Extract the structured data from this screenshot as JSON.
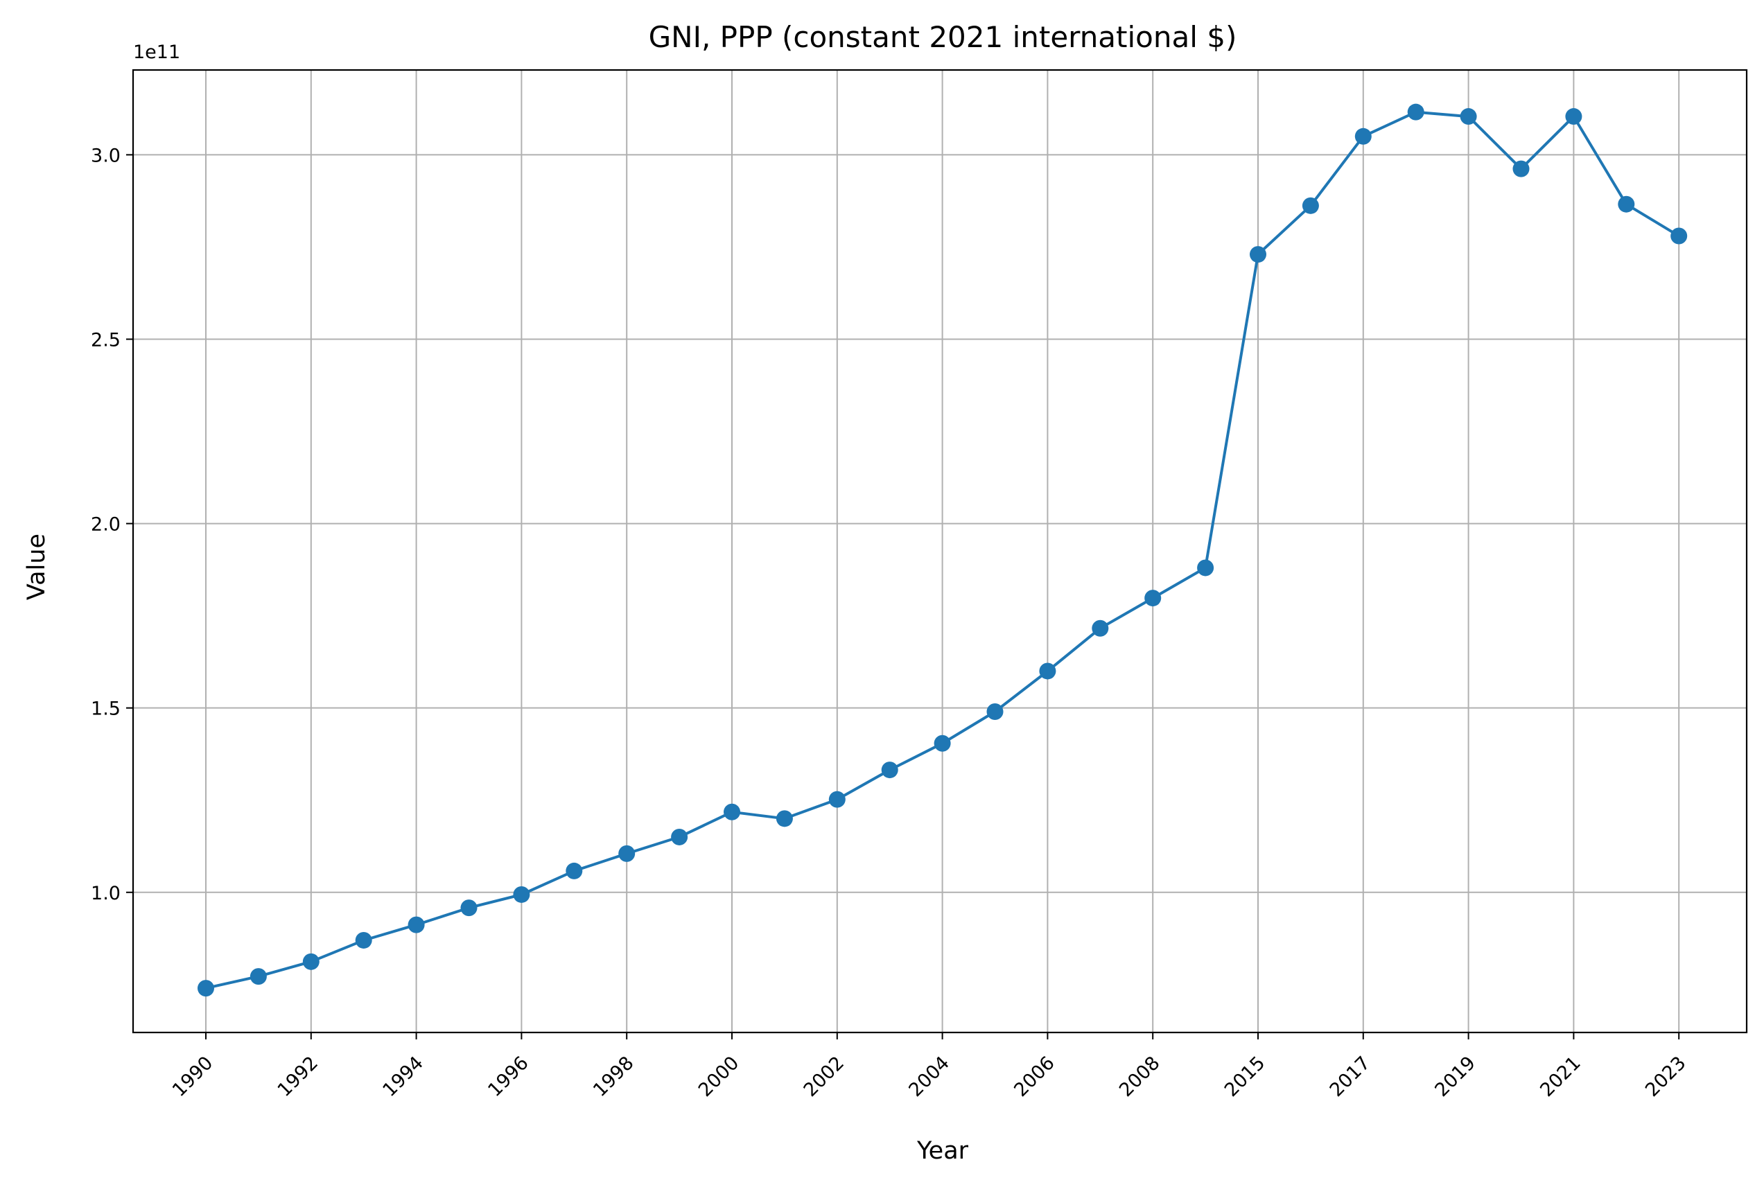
{
  "chart_data": {
    "type": "line",
    "title": "GNI, PPP (constant 2021 international $)",
    "xlabel": "Year",
    "ylabel": "Value",
    "y_offset_label": "1e11",
    "grid": true,
    "legend": "none",
    "color": "#1f77b4",
    "categories": [
      "1990",
      "1991",
      "1992",
      "1993",
      "1994",
      "1995",
      "1996",
      "1997",
      "1998",
      "1999",
      "2000",
      "2001",
      "2002",
      "2003",
      "2004",
      "2005",
      "2006",
      "2007",
      "2008",
      "2009",
      "2015",
      "2016",
      "2017",
      "2018",
      "2019",
      "2020",
      "2021",
      "2022",
      "2023"
    ],
    "x_tick_labels": [
      "1990",
      "1992",
      "1994",
      "1996",
      "1998",
      "2000",
      "2002",
      "2004",
      "2006",
      "2008",
      "2015",
      "2017",
      "2019",
      "2021",
      "2023"
    ],
    "y_tick_labels": [
      "1.0",
      "1.5",
      "2.0",
      "2.5",
      "3.0"
    ],
    "y_tick_values": [
      1.0,
      1.5,
      2.0,
      2.5,
      3.0
    ],
    "ylim": [
      0.62,
      3.23
    ],
    "y_unit_multiplier": 100000000000.0,
    "series": [
      {
        "values": [
          0.74,
          0.772,
          0.812,
          0.87,
          0.912,
          0.958,
          0.994,
          1.058,
          1.105,
          1.15,
          1.218,
          1.2,
          1.252,
          1.332,
          1.404,
          1.49,
          1.6,
          1.716,
          1.798,
          1.88,
          2.73,
          2.862,
          3.05,
          3.116,
          3.104,
          2.962,
          3.104,
          2.866,
          2.78
        ]
      }
    ]
  }
}
